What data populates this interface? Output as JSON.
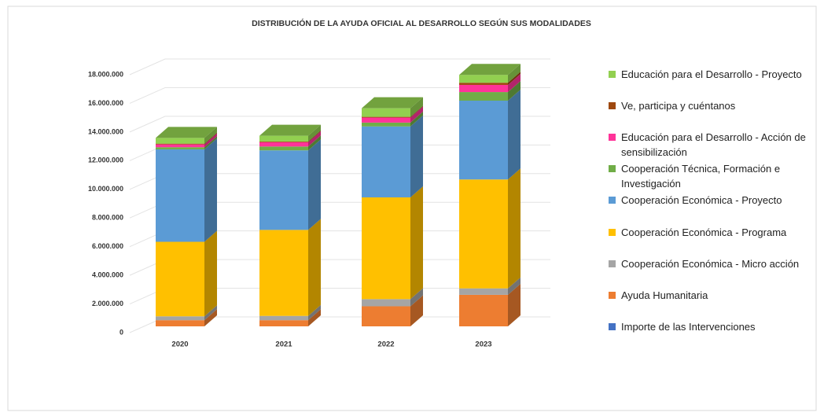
{
  "chart_data": {
    "type": "stacked-bar-3d",
    "title": "DISTRIBUCIÓN DE LA AYUDA OFICIAL AL DESARROLLO SEGÚN SUS MODALIDADES",
    "categories": [
      "2020",
      "2021",
      "2022",
      "2023"
    ],
    "series": [
      {
        "name": "Importe de las Intervenciones",
        "color": "#4472c4",
        "values": [
          0,
          0,
          0,
          0
        ]
      },
      {
        "name": "Ayuda Humanitaria",
        "color": "#ed7d31",
        "values": [
          430000,
          430000,
          1400000,
          2200000
        ]
      },
      {
        "name": "Cooperación Económica - Micro acción",
        "color": "#a5a5a5",
        "values": [
          270000,
          300000,
          500000,
          450000
        ]
      },
      {
        "name": "Cooperación Económica - Programa",
        "color": "#ffc000",
        "values": [
          5200000,
          6000000,
          7100000,
          7600000
        ]
      },
      {
        "name": "Cooperación Económica - Proyecto",
        "color": "#5b9bd5",
        "values": [
          6450000,
          5550000,
          4950000,
          5500000
        ]
      },
      {
        "name": "Cooperación Técnica, Formación e Investigación",
        "color": "#70ad47",
        "values": [
          150000,
          270000,
          270000,
          600000
        ]
      },
      {
        "name": "Educación para el Desarrollo - Acción de sensibilización",
        "color": "#ff3399",
        "values": [
          200000,
          300000,
          350000,
          500000
        ]
      },
      {
        "name": "Ve, participa y cuéntanos",
        "color": "#9e480e",
        "values": [
          50000,
          50000,
          50000,
          150000
        ]
      },
      {
        "name": "Educación para el Desarrollo - Proyecto",
        "color": "#92d050",
        "values": [
          400000,
          400000,
          600000,
          550000
        ]
      }
    ],
    "ylim": [
      0,
      18000000
    ],
    "yticks": [
      0,
      {
        "value": 2000000,
        "label": "2.000.000"
      },
      {
        "value": 4000000,
        "label": "4.000.000"
      },
      {
        "value": 6000000,
        "label": "6.000.000"
      },
      {
        "value": 8000000,
        "label": "8.000.000"
      },
      {
        "value": 10000000,
        "label": "10.000.000"
      },
      {
        "value": 12000000,
        "label": "12.000.000"
      },
      {
        "value": 14000000,
        "label": "14.000.000"
      },
      {
        "value": 16000000,
        "label": "16.000.000"
      },
      {
        "value": 18000000,
        "label": "18.000.000"
      }
    ],
    "grid": true
  }
}
